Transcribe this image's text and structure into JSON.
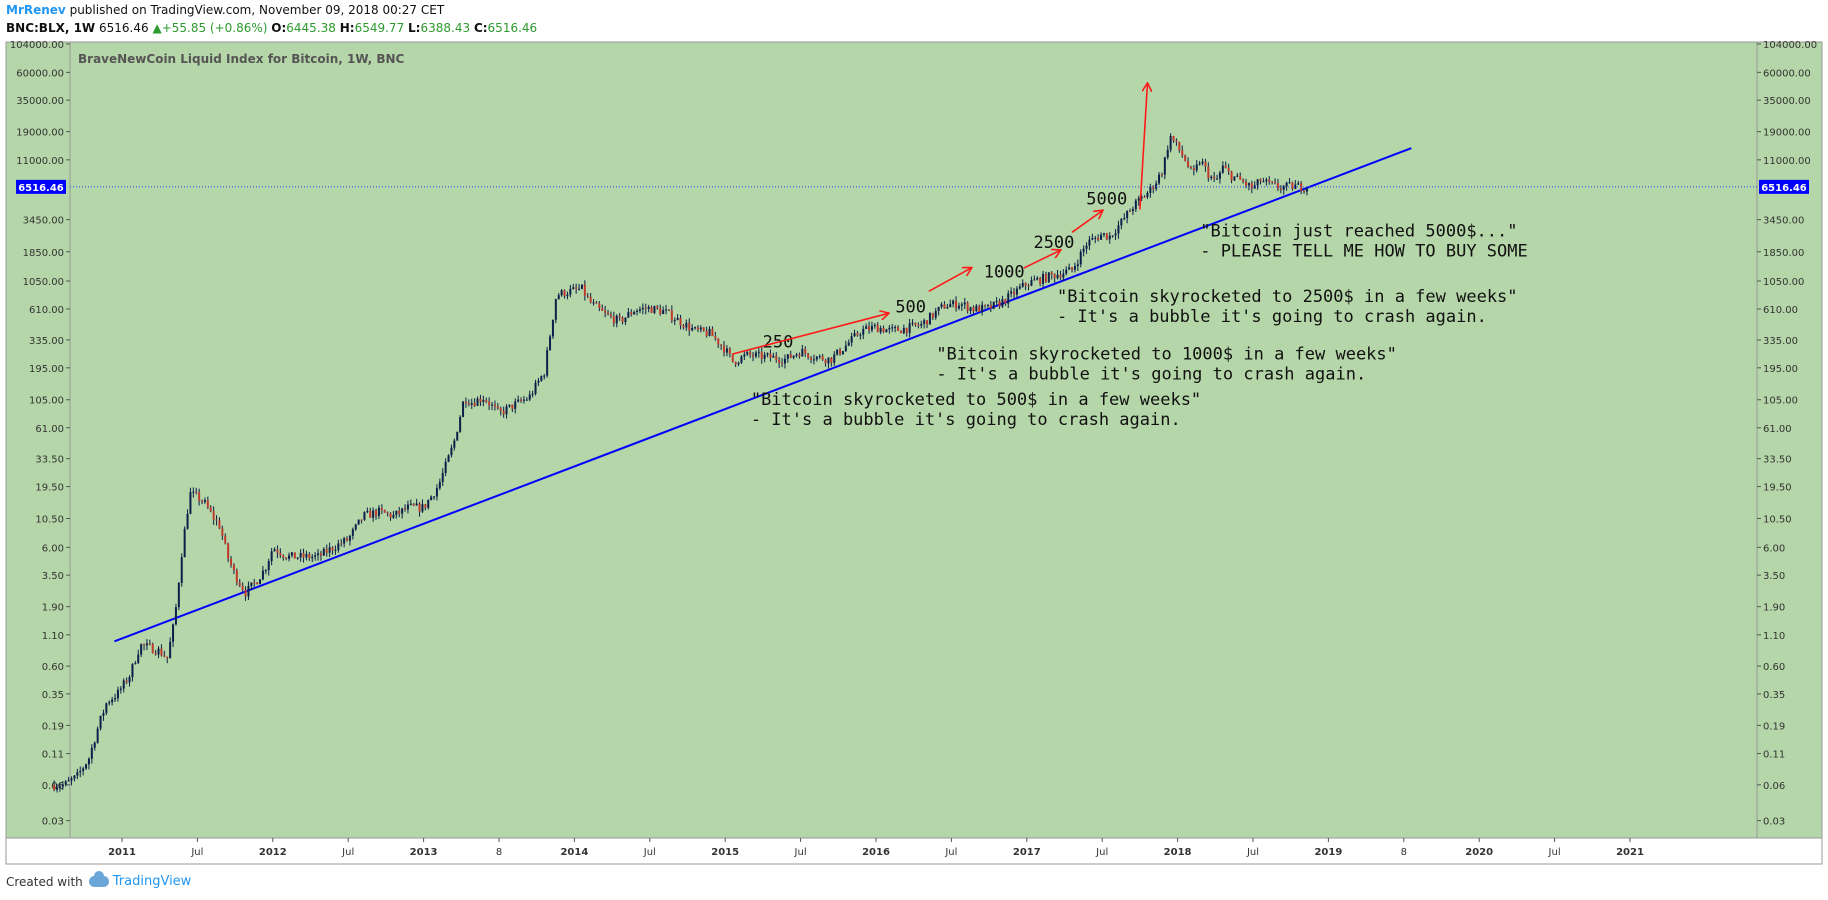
{
  "header": {
    "user": "MrRenev",
    "published_text": "published on TradingView.com, November 09, 2018 00:27 CET",
    "symbol": "BNC:BLX, 1W",
    "last": "6516.46",
    "change": "+55.85 (+0.86%)",
    "o_label": "O:",
    "o_value": "6445.38",
    "h_label": "H:",
    "h_value": "6549.77",
    "l_label": "L:",
    "l_value": "6388.43",
    "c_label": "C:",
    "c_value": "6516.46"
  },
  "footer": {
    "created_with": "Created with",
    "brand": "TradingView"
  },
  "colors": {
    "background": "#b5d6a8",
    "candle_up": "#0b1f4a",
    "candle_down": "#c0392b",
    "trendline": "#0000ff",
    "arrow": "#ff1a1a",
    "price_line": "#2244ff",
    "price_label_bg": "#0000ff"
  },
  "chart_data": {
    "type": "candlestick",
    "title": "BraveNewCoin Liquid Index for Bitcoin, 1W, BNC",
    "y_scale": "log",
    "ylim": [
      0.025,
      104000
    ],
    "y_ticks": [
      "104000.00",
      "60000.00",
      "35000.00",
      "19000.00",
      "11000.00",
      "3450.00",
      "1850.00",
      "1050.00",
      "610.00",
      "335.00",
      "195.00",
      "105.00",
      "61.00",
      "33.50",
      "19.50",
      "10.50",
      "6.00",
      "3.50",
      "1.90",
      "1.10",
      "0.60",
      "0.35",
      "0.19",
      "0.11",
      "0.06",
      "0.03"
    ],
    "x_ticks": [
      "2011",
      "Jul",
      "2012",
      "Jul",
      "2013",
      "8",
      "2014",
      "Jul",
      "2015",
      "Jul",
      "2016",
      "Jul",
      "2017",
      "Jul",
      "2018",
      "Jul",
      "2019",
      "8",
      "2020",
      "Jul",
      "2021"
    ],
    "current_price": "6516.46",
    "price_path": [
      [
        2010.55,
        0.06
      ],
      [
        2010.62,
        0.06
      ],
      [
        2010.7,
        0.07
      ],
      [
        2010.78,
        0.1
      ],
      [
        2010.85,
        0.2
      ],
      [
        2010.9,
        0.3
      ],
      [
        2010.97,
        0.35
      ],
      [
        2011.05,
        0.5
      ],
      [
        2011.12,
        0.9
      ],
      [
        2011.2,
        0.85
      ],
      [
        2011.25,
        0.8
      ],
      [
        2011.3,
        0.7
      ],
      [
        2011.35,
        1.5
      ],
      [
        2011.4,
        6
      ],
      [
        2011.45,
        17
      ],
      [
        2011.5,
        16
      ],
      [
        2011.55,
        14
      ],
      [
        2011.6,
        11
      ],
      [
        2011.65,
        9
      ],
      [
        2011.7,
        5
      ],
      [
        2011.75,
        3.5
      ],
      [
        2011.82,
        2.5
      ],
      [
        2011.88,
        3
      ],
      [
        2011.95,
        4
      ],
      [
        2012.0,
        6
      ],
      [
        2012.1,
        5
      ],
      [
        2012.2,
        5
      ],
      [
        2012.3,
        5
      ],
      [
        2012.4,
        6
      ],
      [
        2012.5,
        7
      ],
      [
        2012.6,
        11
      ],
      [
        2012.7,
        12
      ],
      [
        2012.8,
        11
      ],
      [
        2012.9,
        13
      ],
      [
        2013.0,
        13
      ],
      [
        2013.1,
        20
      ],
      [
        2013.2,
        45
      ],
      [
        2013.27,
        110
      ],
      [
        2013.32,
        100
      ],
      [
        2013.4,
        110
      ],
      [
        2013.5,
        80
      ],
      [
        2013.6,
        95
      ],
      [
        2013.7,
        110
      ],
      [
        2013.8,
        180
      ],
      [
        2013.88,
        800
      ],
      [
        2013.95,
        850
      ],
      [
        2014.05,
        900
      ],
      [
        2014.1,
        700
      ],
      [
        2014.2,
        550
      ],
      [
        2014.3,
        480
      ],
      [
        2014.4,
        600
      ],
      [
        2014.5,
        620
      ],
      [
        2014.6,
        580
      ],
      [
        2014.7,
        480
      ],
      [
        2014.8,
        400
      ],
      [
        2014.9,
        380
      ],
      [
        2015.0,
        280
      ],
      [
        2015.05,
        220
      ],
      [
        2015.15,
        250
      ],
      [
        2015.3,
        240
      ],
      [
        2015.4,
        230
      ],
      [
        2015.5,
        270
      ],
      [
        2015.6,
        240
      ],
      [
        2015.7,
        230
      ],
      [
        2015.8,
        300
      ],
      [
        2015.9,
        400
      ],
      [
        2016.0,
        430
      ],
      [
        2016.1,
        400
      ],
      [
        2016.2,
        420
      ],
      [
        2016.3,
        450
      ],
      [
        2016.45,
        650
      ],
      [
        2016.55,
        680
      ],
      [
        2016.65,
        610
      ],
      [
        2016.75,
        620
      ],
      [
        2016.85,
        720
      ],
      [
        2016.95,
        900
      ],
      [
        2017.0,
        1000
      ],
      [
        2017.1,
        1100
      ],
      [
        2017.2,
        1200
      ],
      [
        2017.3,
        1300
      ],
      [
        2017.4,
        2200
      ],
      [
        2017.5,
        2600
      ],
      [
        2017.55,
        2500
      ],
      [
        2017.62,
        3200
      ],
      [
        2017.7,
        4400
      ],
      [
        2017.8,
        5800
      ],
      [
        2017.85,
        7000
      ],
      [
        2017.9,
        9000
      ],
      [
        2017.95,
        17500
      ],
      [
        2018.0,
        14000
      ],
      [
        2018.05,
        11000
      ],
      [
        2018.1,
        8000
      ],
      [
        2018.15,
        11000
      ],
      [
        2018.2,
        8500
      ],
      [
        2018.25,
        7000
      ],
      [
        2018.3,
        9500
      ],
      [
        2018.35,
        8200
      ],
      [
        2018.42,
        7300
      ],
      [
        2018.5,
        6300
      ],
      [
        2018.55,
        7400
      ],
      [
        2018.6,
        6900
      ],
      [
        2018.68,
        6400
      ],
      [
        2018.75,
        6600
      ],
      [
        2018.86,
        6516
      ]
    ],
    "trendline": {
      "start": [
        2010.95,
        0.97
      ],
      "end": [
        2019.55,
        13800
      ]
    },
    "annotations": [
      {
        "type": "label",
        "text": "250",
        "x": 2015.35,
        "y": 290
      },
      {
        "type": "label",
        "text": "500",
        "x": 2016.23,
        "y": 570
      },
      {
        "type": "label",
        "text": "1000",
        "x": 2016.85,
        "y": 1120
      },
      {
        "type": "label",
        "text": "2500",
        "x": 2017.18,
        "y": 2000
      },
      {
        "type": "label",
        "text": "5000",
        "x": 2017.53,
        "y": 4650
      },
      {
        "type": "arrow",
        "from": [
          2015.05,
          255
        ],
        "to": [
          2016.08,
          560
        ]
      },
      {
        "type": "arrow",
        "from": [
          2016.35,
          860
        ],
        "to": [
          2016.63,
          1350
        ]
      },
      {
        "type": "arrow",
        "from": [
          2016.98,
          1350
        ],
        "to": [
          2017.22,
          1900
        ]
      },
      {
        "type": "arrow",
        "from": [
          2017.3,
          2700
        ],
        "to": [
          2017.5,
          4100
        ]
      },
      {
        "type": "arrow",
        "from": [
          2017.75,
          4200
        ],
        "to": [
          2017.8,
          48000
        ]
      }
    ],
    "notes": [
      {
        "line1": "\"Bitcoin just reached 5000$...\"",
        "line2": "- PLEASE TELL ME HOW TO BUY SOME",
        "x": 2018.15,
        "y": 2500
      },
      {
        "line1": "\"Bitcoin skyrocketed to 2500$ in a few weeks\"",
        "line2": "- It's a bubble it's going to crash again.",
        "x": 2017.2,
        "y": 700
      },
      {
        "line1": "\"Bitcoin skyrocketed to 1000$ in a few weeks\"",
        "line2": "- It's a bubble it's going to crash again.",
        "x": 2016.4,
        "y": 230
      },
      {
        "line1": "\"Bitcoin skyrocketed to 500$ in a few weeks\"",
        "line2": "- It's a bubble it's going to crash again.",
        "x": 2015.17,
        "y": 95
      }
    ]
  }
}
